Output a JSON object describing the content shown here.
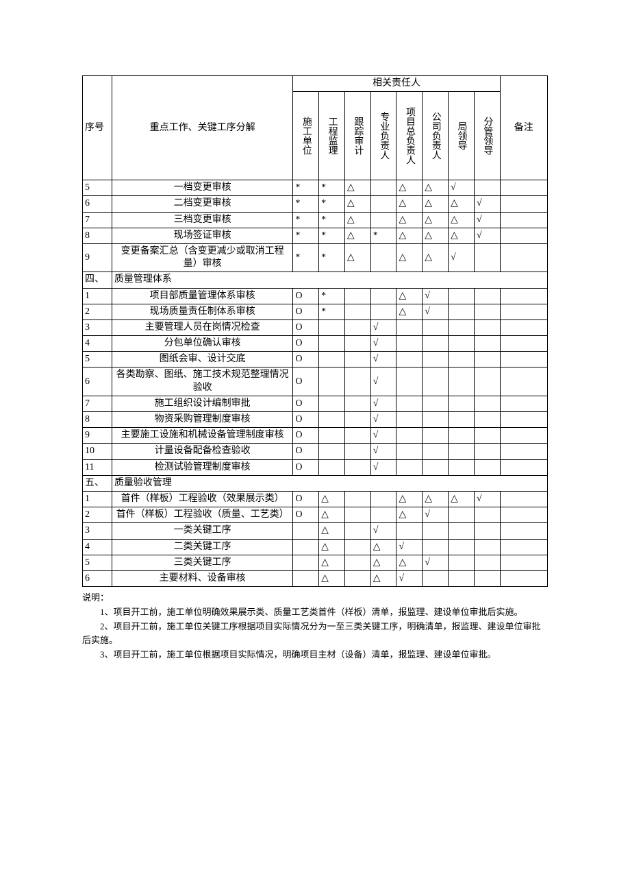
{
  "header": {
    "seq": "序号",
    "desc": "重点工作、关键工序分解",
    "responsible_group": "相关责任人",
    "cols": {
      "c1": "施工单位",
      "c2": "工程监理",
      "c3": "跟踪审计",
      "c4": "专业负责人",
      "c5": "项目总负责人",
      "c6": "公司负责人",
      "c7": "局领导",
      "c8": "分管领导"
    },
    "remark": "备注"
  },
  "rows": [
    {
      "seq": "5",
      "desc": "一档变更审核",
      "c1": "*",
      "c2": "*",
      "c3": "△",
      "c4": "",
      "c5": "△",
      "c6": "△",
      "c7": "√",
      "c8": "",
      "remark": ""
    },
    {
      "seq": "6",
      "desc": "二档变更审核",
      "c1": "*",
      "c2": "*",
      "c3": "△",
      "c4": "",
      "c5": "△",
      "c6": "△",
      "c7": "△",
      "c8": "√",
      "remark": ""
    },
    {
      "seq": "7",
      "desc": "三档变更审核",
      "c1": "*",
      "c2": "*",
      "c3": "△",
      "c4": "",
      "c5": "△",
      "c6": "△",
      "c7": "△",
      "c8": "√",
      "remark": ""
    },
    {
      "seq": "8",
      "desc": "现场签证审核",
      "c1": "*",
      "c2": "*",
      "c3": "△",
      "c4": "*",
      "c5": "△",
      "c6": "△",
      "c7": "△",
      "c8": "√",
      "remark": ""
    },
    {
      "seq": "9",
      "desc": "变更备案汇总（含变更减少或取消工程量）审核",
      "c1": "*",
      "c2": "*",
      "c3": "△",
      "c4": "",
      "c5": "△",
      "c6": "△",
      "c7": "√",
      "c8": "",
      "remark": ""
    },
    {
      "section": true,
      "seq": "四、",
      "desc": "质量管理体系"
    },
    {
      "seq": "1",
      "desc": "项目部质量管理体系审核",
      "c1": "O",
      "c2": "*",
      "c3": "",
      "c4": "",
      "c5": "△",
      "c6": "√",
      "c7": "",
      "c8": "",
      "remark": ""
    },
    {
      "seq": "2",
      "desc": "现场质量责任制体系审核",
      "c1": "O",
      "c2": "*",
      "c3": "",
      "c4": "",
      "c5": "△",
      "c6": "√",
      "c7": "",
      "c8": "",
      "remark": ""
    },
    {
      "seq": "3",
      "desc": "主要管理人员在岗情况检查",
      "c1": "O",
      "c2": "",
      "c3": "",
      "c4": "√",
      "c5": "",
      "c6": "",
      "c7": "",
      "c8": "",
      "remark": ""
    },
    {
      "seq": "4",
      "desc": "分包单位确认审核",
      "c1": "O",
      "c2": "",
      "c3": "",
      "c4": "√",
      "c5": "",
      "c6": "",
      "c7": "",
      "c8": "",
      "remark": ""
    },
    {
      "seq": "5",
      "desc": "图纸会审、设计交底",
      "c1": "O",
      "c2": "",
      "c3": "",
      "c4": "√",
      "c5": "",
      "c6": "",
      "c7": "",
      "c8": "",
      "remark": ""
    },
    {
      "seq": "6",
      "desc": "各类勘察、图纸、施工技术规范整理情况验收",
      "c1": "O",
      "c2": "",
      "c3": "",
      "c4": "√",
      "c5": "",
      "c6": "",
      "c7": "",
      "c8": "",
      "remark": ""
    },
    {
      "seq": "7",
      "desc": "施工组织设计编制审批",
      "c1": "O",
      "c2": "",
      "c3": "",
      "c4": "√",
      "c5": "",
      "c6": "",
      "c7": "",
      "c8": "",
      "remark": ""
    },
    {
      "seq": "8",
      "desc": "物资采购管理制度审核",
      "c1": "O",
      "c2": "",
      "c3": "",
      "c4": "√",
      "c5": "",
      "c6": "",
      "c7": "",
      "c8": "",
      "remark": ""
    },
    {
      "seq": "9",
      "desc": "主要施工设施和机械设备管理制度审核",
      "c1": "O",
      "c2": "",
      "c3": "",
      "c4": "√",
      "c5": "",
      "c6": "",
      "c7": "",
      "c8": "",
      "remark": ""
    },
    {
      "seq": "10",
      "desc": "计量设备配备检查验收",
      "c1": "O",
      "c2": "",
      "c3": "",
      "c4": "√",
      "c5": "",
      "c6": "",
      "c7": "",
      "c8": "",
      "remark": ""
    },
    {
      "seq": "11",
      "desc": "检测试验管理制度审核",
      "c1": "O",
      "c2": "",
      "c3": "",
      "c4": "√",
      "c5": "",
      "c6": "",
      "c7": "",
      "c8": "",
      "remark": ""
    },
    {
      "section": true,
      "seq": "五、",
      "desc": "质量验收管理"
    },
    {
      "seq": "1",
      "desc": "首件（样板）工程验收（效果展示类）",
      "c1": "O",
      "c2": "△",
      "c3": "",
      "c4": "",
      "c5": "△",
      "c6": "△",
      "c7": "△",
      "c8": "√",
      "remark": ""
    },
    {
      "seq": "2",
      "desc": "首件（样板）工程验收（质量、工艺类）",
      "c1": "O",
      "c2": "△",
      "c3": "",
      "c4": "",
      "c5": "△",
      "c6": "√",
      "c7": "",
      "c8": "",
      "remark": ""
    },
    {
      "seq": "3",
      "desc": "一类关键工序",
      "c1": "",
      "c2": "△",
      "c3": "",
      "c4": "√",
      "c5": "",
      "c6": "",
      "c7": "",
      "c8": "",
      "remark": ""
    },
    {
      "seq": "4",
      "desc": "二类关键工序",
      "c1": "",
      "c2": "△",
      "c3": "",
      "c4": "△",
      "c5": "√",
      "c6": "",
      "c7": "",
      "c8": "",
      "remark": ""
    },
    {
      "seq": "5",
      "desc": "三类关键工序",
      "c1": "",
      "c2": "△",
      "c3": "",
      "c4": "△",
      "c5": "△",
      "c6": "√",
      "c7": "",
      "c8": "",
      "remark": ""
    },
    {
      "seq": "6",
      "desc": "主要材料、设备审核",
      "c1": "",
      "c2": "△",
      "c3": "",
      "c4": "△",
      "c5": "√",
      "c6": "",
      "c7": "",
      "c8": "",
      "remark": ""
    }
  ],
  "notes": {
    "label": "说明：",
    "items": [
      "1、项目开工前，施工单位明确效果展示类、质量工艺类首件（样板）清单，报监理、建设单位审批后实施。",
      "2、项目开工前，施工单位关键工序根据项目实际情况分为一至三类关键工序，明确清单，报监理、建设单位审批后实施。",
      "3、项目开工前，施工单位根据项目实际情况，明确项目主材（设备）清单，报监理、建设单位审批。"
    ]
  },
  "styling": {
    "font_family": "SimSun",
    "font_size_pt": 10.5,
    "border_color": "#000000",
    "background_color": "#ffffff",
    "text_color": "#000000",
    "symbols": {
      "circle": "O",
      "star": "*",
      "triangle": "△",
      "check": "√"
    }
  }
}
